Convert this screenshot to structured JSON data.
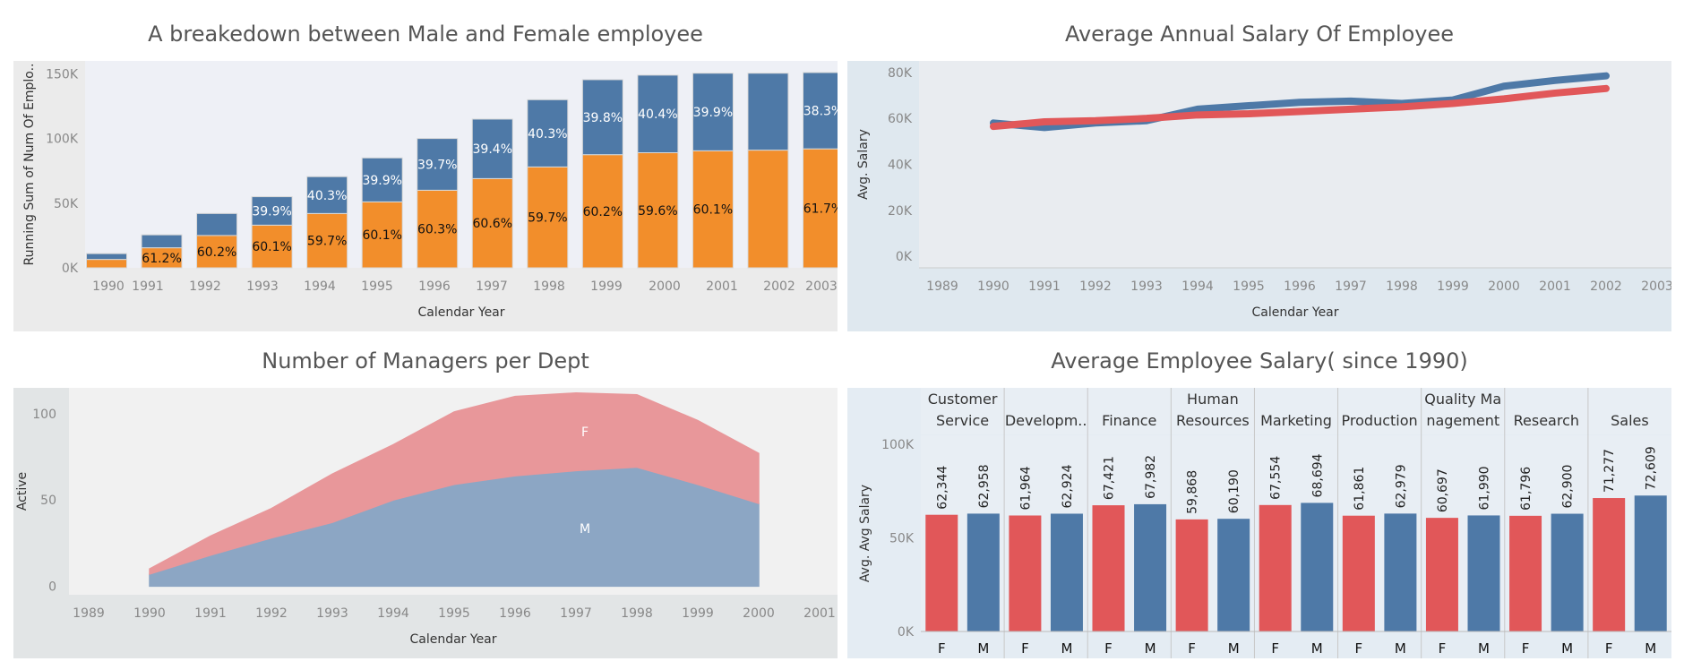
{
  "chart_data": [
    {
      "type": "bar",
      "title": "A breakedown between Male and Female employee",
      "xlabel": "Calendar Year",
      "ylabel": "Running Sum of Num Of Emplo..",
      "y_ticks": [
        "0K",
        "50K",
        "100K",
        "150K"
      ],
      "ylim": [
        0,
        160000
      ],
      "stacked": true,
      "categories": [
        "1990",
        "1991",
        "1992",
        "1993",
        "1994",
        "1995",
        "1996",
        "1997",
        "1998",
        "1999",
        "2000",
        "2001",
        "2002",
        "2003"
      ],
      "series": [
        {
          "values": [
            6500,
            15500,
            25000,
            33000,
            42000,
            51000,
            60000,
            69000,
            78000,
            87500,
            89000,
            90500,
            91000,
            92000
          ],
          "color": "#F28E2B",
          "labels": [
            "",
            "61.2%",
            "60.2%",
            "60.1%",
            "59.7%",
            "60.1%",
            "60.3%",
            "60.6%",
            "59.7%",
            "60.2%",
            "59.6%",
            "60.1%",
            "",
            "61.7%"
          ]
        },
        {
          "values": [
            4500,
            10000,
            17000,
            22000,
            28500,
            34000,
            40000,
            46000,
            52000,
            58000,
            60000,
            60000,
            59500,
            59000
          ],
          "color": "#4E79A7",
          "labels": [
            "",
            "",
            "",
            "39.9%",
            "40.3%",
            "39.9%",
            "39.7%",
            "39.4%",
            "40.3%",
            "39.8%",
            "40.4%",
            "39.9%",
            "",
            "38.3%"
          ]
        }
      ],
      "legend": "none"
    },
    {
      "type": "line",
      "title": "Average Annual Salary Of Employee",
      "xlabel": "Calendar Year",
      "ylabel": "Avg. Salary",
      "x_ticks": [
        "1989",
        "1990",
        "1991",
        "1992",
        "1993",
        "1994",
        "1995",
        "1996",
        "1997",
        "1998",
        "1999",
        "2000",
        "2001",
        "2002",
        "2003"
      ],
      "y_ticks": [
        "0K",
        "20K",
        "40K",
        "60K",
        "80K"
      ],
      "ylim": [
        -5000,
        85000
      ],
      "x": [
        1990,
        1991,
        1992,
        1993,
        1994,
        1995,
        1996,
        1997,
        1998,
        1999,
        2000,
        2001,
        2002
      ],
      "series": [
        {
          "color": "#4E79A7",
          "values": [
            58000,
            56000,
            58000,
            59000,
            64000,
            65500,
            67000,
            67500,
            66500,
            68000,
            74000,
            76500,
            78500
          ]
        },
        {
          "color": "#E15759",
          "values": [
            56500,
            58500,
            59000,
            60000,
            61500,
            62000,
            63000,
            64000,
            65000,
            66500,
            68500,
            71000,
            73000
          ]
        }
      ],
      "legend": "none"
    },
    {
      "type": "area",
      "title": "Number of Managers per Dept",
      "xlabel": "Calendar Year",
      "ylabel": "Active",
      "x_ticks": [
        "1989",
        "1990",
        "1991",
        "1992",
        "1993",
        "1994",
        "1995",
        "1996",
        "1997",
        "1998",
        "1999",
        "2000",
        "2001"
      ],
      "y_ticks": [
        "0",
        "50",
        "100"
      ],
      "ylim": [
        -5,
        115
      ],
      "stacked": true,
      "x": [
        1990,
        1991,
        1992,
        1993,
        1994,
        1995,
        1996,
        1997,
        1998,
        1999,
        2000
      ],
      "series": [
        {
          "name": "M",
          "color": "#8CA6C4",
          "values": [
            7,
            18,
            28,
            37,
            50,
            59,
            64,
            67,
            69,
            59,
            48
          ]
        },
        {
          "name": "F",
          "color": "#E8979A",
          "values": [
            3,
            11,
            17,
            28,
            32,
            42,
            46,
            45,
            42,
            37,
            29
          ]
        }
      ],
      "legend": "inline"
    },
    {
      "type": "bar",
      "title": "Average Employee Salary( since 1990)",
      "ylabel": "Avg. Avg Salary",
      "y_ticks": [
        "0K",
        "50K",
        "100K"
      ],
      "ylim": [
        0,
        100000
      ],
      "groups": [
        {
          "name": [
            "Customer",
            "Service"
          ],
          "values": [
            62344,
            62958
          ],
          "labels": [
            "62,344",
            "62,958"
          ]
        },
        {
          "name": [
            "Developm.."
          ],
          "values": [
            61964,
            62924
          ],
          "labels": [
            "61,964",
            "62,924"
          ]
        },
        {
          "name": [
            "Finance"
          ],
          "values": [
            67421,
            67982
          ],
          "labels": [
            "67,421",
            "67,982"
          ]
        },
        {
          "name": [
            "Human",
            "Resources"
          ],
          "values": [
            59868,
            60190
          ],
          "labels": [
            "59,868",
            "60,190"
          ]
        },
        {
          "name": [
            "Marketing"
          ],
          "values": [
            67554,
            68694
          ],
          "labels": [
            "67,554",
            "68,694"
          ]
        },
        {
          "name": [
            "Production"
          ],
          "values": [
            61861,
            62979
          ],
          "labels": [
            "61,861",
            "62,979"
          ]
        },
        {
          "name": [
            "Quality Ma",
            "nagement"
          ],
          "values": [
            60697,
            61990
          ],
          "labels": [
            "60,697",
            "61,990"
          ]
        },
        {
          "name": [
            "Research"
          ],
          "values": [
            61796,
            62900
          ],
          "labels": [
            "61,796",
            "62,900"
          ]
        },
        {
          "name": [
            "Sales"
          ],
          "values": [
            71277,
            72609
          ],
          "labels": [
            "71,277",
            "72,609"
          ]
        }
      ],
      "categories": [
        "F",
        "M"
      ],
      "colors": [
        "#E15759",
        "#4E79A7"
      ],
      "legend": "none"
    }
  ]
}
